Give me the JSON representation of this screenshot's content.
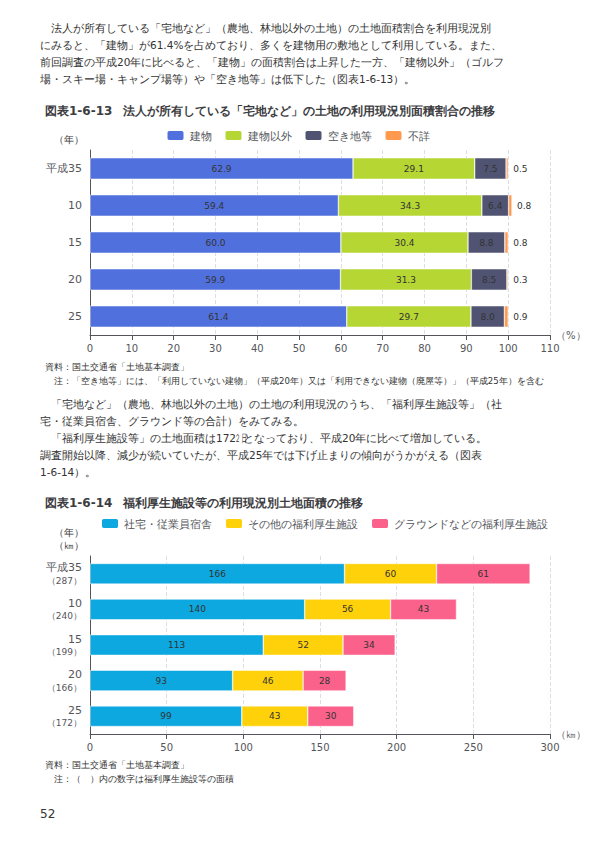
{
  "annotations": {
    "body_text": [
      "　法人が所有している「宅地など」（農地、林地以外の土地）の土地面積割合を利用現況別",
      "にみると、「建物」が61.4%を占めており、多くを建物用の敷地として利用している。また、",
      "前回調査の平成20年に比べると、「建物」の面積割合は上昇した一方、「建物以外」（ゴルフ",
      "場・スキー場・キャンプ場等）や「空き地等」は低下した（図表1-6-13）。"
    ],
    "body_text2": [
      "　「宅地など」（農地、林地以外の土地）の土地の利用現況のうち、「福利厚生施設等」（社",
      "宅・従業員宿舎、グラウンド等の合計）をみてみる。",
      "　「福利厚生施設等」の土地面積は172㏡となっており、平成20年に比べて増加している。",
      "調査開始以降、減少が続いていたが、平成25年では下げ止まりの傾向がうかがえる（図表",
      "1-6-14）。"
    ],
    "page_number": "52"
  },
  "chart_data": [
    {
      "type": "bar",
      "orientation": "horizontal",
      "stacked": true,
      "data_labels": true,
      "grid": true,
      "legend": "top",
      "subtitle": "図表1-6-13",
      "title": "法人が所有している「宅地など」の土地の利用現況別面積割合の推移",
      "categories": [
        "平成35",
        "10",
        "15",
        "20",
        "25"
      ],
      "series": [
        {
          "name": "建物",
          "values": [
            62.9,
            59.4,
            60.0,
            59.9,
            61.4
          ],
          "value_labels": [
            "62.9",
            "59.4",
            "60.0",
            "59.9",
            "61.4"
          ]
        },
        {
          "name": "建物以外",
          "values": [
            29.1,
            34.3,
            30.4,
            31.3,
            29.7
          ],
          "value_labels": [
            "29.1",
            "34.3",
            "30.4",
            "31.3",
            "29.7"
          ]
        },
        {
          "name": "空き地等",
          "values": [
            7.5,
            6.4,
            8.8,
            8.5,
            8.0
          ],
          "value_labels": [
            "7.5",
            "6.4",
            "8.8",
            "8.5",
            "8.0"
          ]
        },
        {
          "name": "不詳",
          "values": [
            0.5,
            0.8,
            0.8,
            0.3,
            0.9
          ],
          "value_labels": [
            "0.5",
            "0.8",
            "0.8",
            "0.3",
            "0.9"
          ]
        }
      ],
      "xlim": [
        0,
        110
      ],
      "xticks": [
        0,
        10,
        20,
        30,
        40,
        50,
        60,
        70,
        80,
        90,
        100,
        110
      ],
      "xlabel": "（%）",
      "ylabel": "（年）",
      "annotations": [
        "資料：国土交通省「土地基本調査」",
        "　注：「空き地等」には、「利用していない建物」（平成20年）又は「利用できない建物（廃屋等）」（平成25年）を含む"
      ]
    },
    {
      "type": "bar",
      "orientation": "horizontal",
      "stacked": true,
      "data_labels": true,
      "grid": true,
      "legend": "top",
      "subtitle": "図表1-6-14",
      "title": "福利厚生施設等の利用現況別土地面積の推移",
      "categories": [
        "平成35",
        "10",
        "15",
        "20",
        "25"
      ],
      "totals": [
        "（287）",
        "（240）",
        "（199）",
        "（166）",
        "（172）"
      ],
      "series": [
        {
          "name": "社宅・従業員宿舎",
          "values": [
            166,
            140,
            113,
            93,
            99
          ]
        },
        {
          "name": "その他の福利厚生施設",
          "values": [
            60,
            56,
            52,
            46,
            43
          ]
        },
        {
          "name": "グラウンドなどの福利厚生施設",
          "values": [
            61,
            43,
            34,
            28,
            30
          ]
        }
      ],
      "xlim": [
        0,
        300
      ],
      "xticks": [
        0,
        50,
        100,
        150,
        200,
        250,
        300
      ],
      "xlabel": "（㎞）",
      "ylabel": [
        "（年）",
        "（㎞）"
      ],
      "annotations": [
        "資料：国土交通省「土地基本調査」",
        "　注：（　）内の数字は福利厚生施設等の面積"
      ]
    }
  ]
}
